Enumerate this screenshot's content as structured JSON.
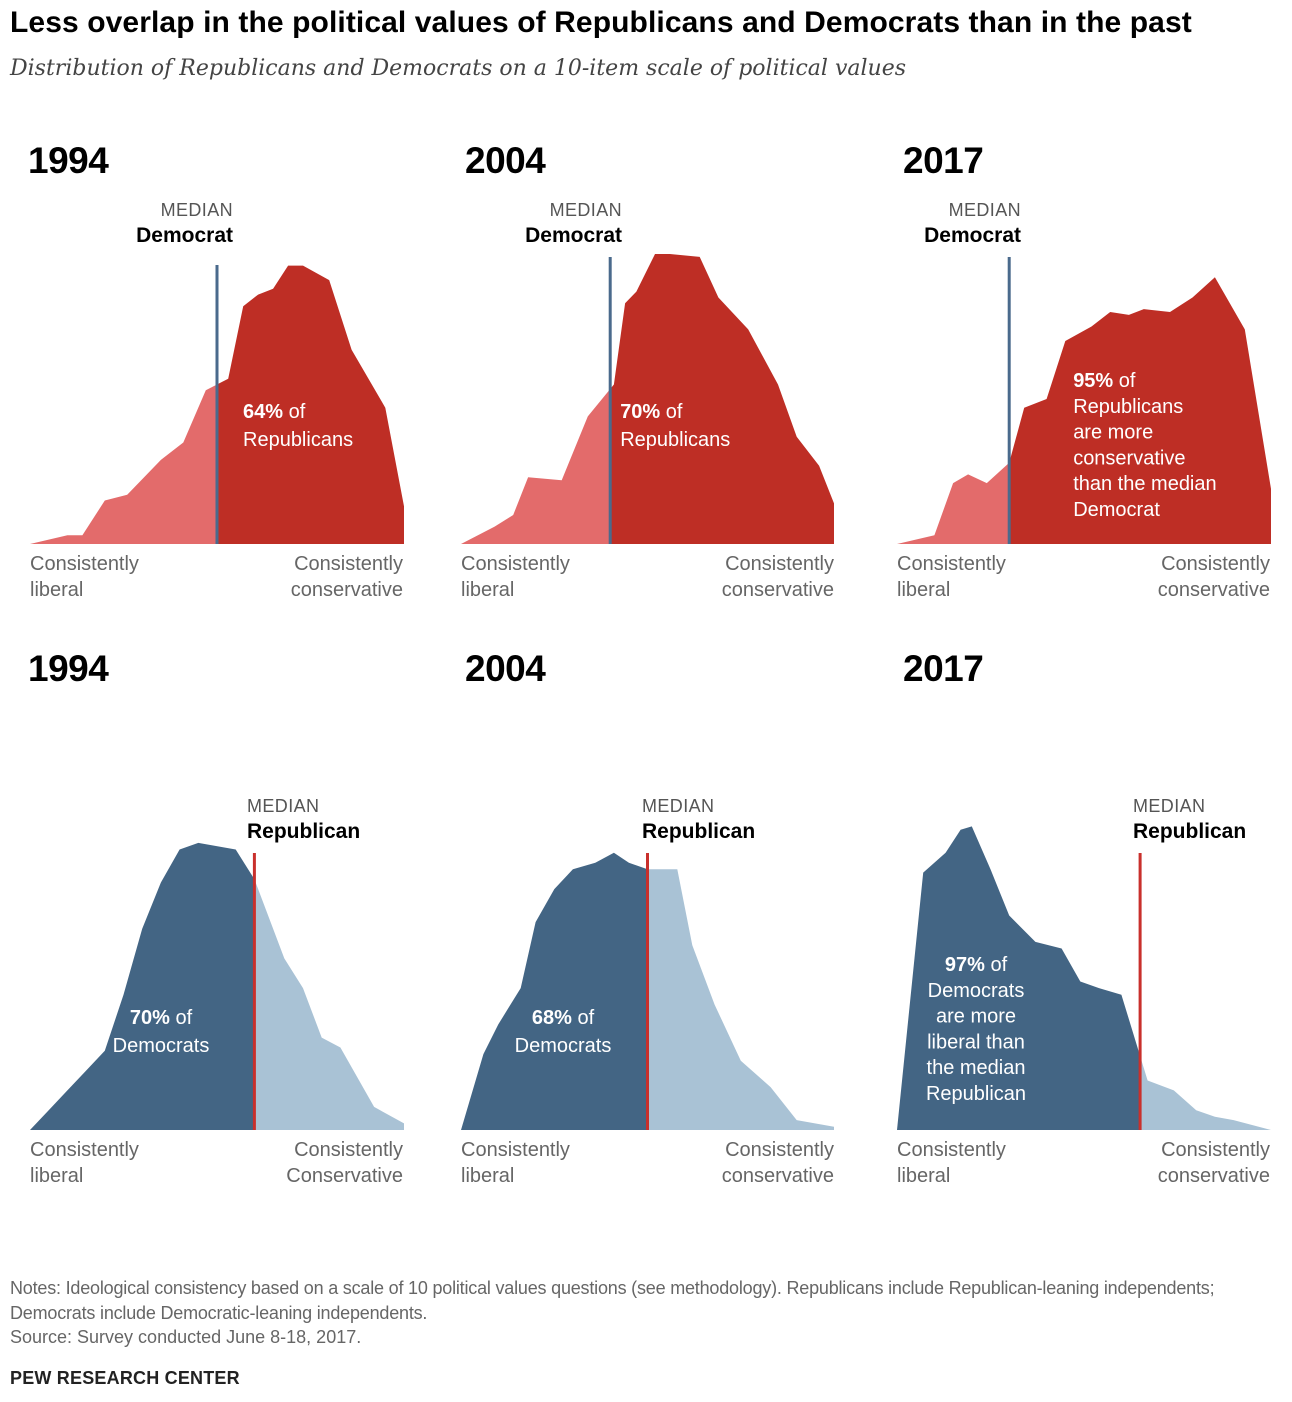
{
  "title": "Less overlap in the political values of Republicans and Democrats than in the past",
  "subtitle": "Distribution of Republicans and Democrats on a 10-item scale of political values",
  "notes": "Notes: Ideological consistency based on a scale of 10 political values questions (see methodology). Republicans include Republican-leaning independents; Democrats include Democratic-leaning independents.",
  "source": "Source: Survey conducted June 8-18, 2017.",
  "brand": "PEW RESEARCH CENTER",
  "colors": {
    "rep_dark": "#be2e25",
    "rep_light": "#e36b6b",
    "dem_dark": "#436584",
    "dem_light": "#a9c2d5",
    "dem_median_line": "#4a6a8c",
    "rep_median_line": "#c9302c"
  },
  "panels": [
    {
      "year": "1994",
      "median_caption": "MEDIAN",
      "median_label": "Democrat",
      "axis_left": "Consistently\nliberal",
      "axis_right": "Consistently\nconservative"
    },
    {
      "year": "2004",
      "median_caption": "MEDIAN",
      "median_label": "Democrat",
      "axis_left": "Consistently\nliberal",
      "axis_right": "Consistently\nconservative"
    },
    {
      "year": "2017",
      "median_caption": "MEDIAN",
      "median_label": "Democrat",
      "axis_left": "Consistently\nliberal",
      "axis_right": "Consistently\nconservative"
    },
    {
      "year": "1994",
      "median_caption": "MEDIAN",
      "median_label": "Republican",
      "axis_left": "Consistently\nliberal",
      "axis_right": "Consistently\nConservative"
    },
    {
      "year": "2004",
      "median_caption": "MEDIAN",
      "median_label": "Republican",
      "axis_left": "Consistently\nliberal",
      "axis_right": "Consistently\nconservative"
    },
    {
      "year": "2017",
      "median_caption": "MEDIAN",
      "median_label": "Republican",
      "axis_left": "Consistently\nliberal",
      "axis_right": "Consistently\nconservative"
    }
  ],
  "chart_data": [
    {
      "type": "area",
      "group": "Republicans",
      "year": "1994",
      "median_of": "Democrats",
      "x": [
        0,
        0.1,
        0.14,
        0.2,
        0.26,
        0.35,
        0.41,
        0.47,
        0.53,
        0.57,
        0.61,
        0.65,
        0.69,
        0.73,
        0.8,
        0.86,
        0.95,
        1
      ],
      "y": [
        0,
        0.03,
        0.03,
        0.15,
        0.17,
        0.29,
        0.35,
        0.53,
        0.57,
        0.82,
        0.86,
        0.88,
        0.96,
        0.96,
        0.91,
        0.67,
        0.47,
        0.13
      ],
      "median_x": 0.5,
      "annotation": [
        "64% of",
        "Republicans"
      ],
      "ylim": [
        0,
        1
      ]
    },
    {
      "type": "area",
      "group": "Republicans",
      "year": "2004",
      "median_of": "Democrats",
      "x": [
        0,
        0.09,
        0.14,
        0.18,
        0.27,
        0.34,
        0.41,
        0.44,
        0.47,
        0.52,
        0.56,
        0.64,
        0.69,
        0.77,
        0.85,
        0.9,
        0.96,
        1
      ],
      "y": [
        0,
        0.06,
        0.1,
        0.23,
        0.22,
        0.44,
        0.55,
        0.83,
        0.87,
        1,
        1,
        0.99,
        0.85,
        0.74,
        0.55,
        0.37,
        0.27,
        0.14
      ],
      "median_x": 0.4,
      "annotation": [
        "70% of",
        "Republicans"
      ],
      "ylim": [
        0,
        1
      ]
    },
    {
      "type": "area",
      "group": "Republicans",
      "year": "2017",
      "median_of": "Democrats",
      "x": [
        0,
        0.1,
        0.15,
        0.19,
        0.24,
        0.3,
        0.34,
        0.4,
        0.45,
        0.52,
        0.57,
        0.62,
        0.66,
        0.73,
        0.79,
        0.85,
        0.93,
        1
      ],
      "y": [
        0,
        0.03,
        0.21,
        0.24,
        0.21,
        0.28,
        0.47,
        0.5,
        0.7,
        0.75,
        0.8,
        0.79,
        0.81,
        0.8,
        0.85,
        0.92,
        0.74,
        0.19
      ],
      "median_x": 0.3,
      "annotation": [
        "95% of",
        "Republicans",
        "are more",
        "conservative",
        "than the median",
        "Democrat"
      ],
      "ylim": [
        0,
        1
      ]
    },
    {
      "type": "area",
      "group": "Democrats",
      "year": "1994",
      "median_of": "Republicans",
      "x": [
        0,
        0.05,
        0.1,
        0.15,
        0.2,
        0.25,
        0.3,
        0.35,
        0.4,
        0.45,
        0.55,
        0.6,
        0.68,
        0.73,
        0.78,
        0.83,
        0.92,
        1
      ],
      "y": [
        0,
        0.06,
        0.12,
        0.18,
        0.24,
        0.41,
        0.61,
        0.75,
        0.85,
        0.87,
        0.85,
        0.76,
        0.52,
        0.43,
        0.28,
        0.25,
        0.07,
        0.02
      ],
      "median_x": 0.6,
      "annotation": [
        "70% of",
        "Democrats"
      ],
      "ylim": [
        0,
        1
      ]
    },
    {
      "type": "area",
      "group": "Democrats",
      "year": "2004",
      "median_of": "Republicans",
      "x": [
        0,
        0.06,
        0.1,
        0.16,
        0.2,
        0.25,
        0.3,
        0.36,
        0.41,
        0.45,
        0.5,
        0.55,
        0.58,
        0.62,
        0.68,
        0.75,
        0.83,
        0.9,
        1
      ],
      "y": [
        0,
        0.23,
        0.32,
        0.43,
        0.63,
        0.73,
        0.79,
        0.81,
        0.84,
        0.81,
        0.79,
        0.79,
        0.79,
        0.56,
        0.38,
        0.21,
        0.13,
        0.03,
        0.01
      ],
      "median_x": 0.5,
      "annotation": [
        "68% of",
        "Democrats"
      ],
      "ylim": [
        0,
        1
      ]
    },
    {
      "type": "area",
      "group": "Democrats",
      "year": "2017",
      "median_of": "Republicans",
      "x": [
        0,
        0.07,
        0.13,
        0.17,
        0.2,
        0.25,
        0.3,
        0.37,
        0.44,
        0.49,
        0.54,
        0.6,
        0.67,
        0.74,
        0.8,
        0.85,
        0.9,
        1
      ],
      "y": [
        0,
        0.78,
        0.84,
        0.91,
        0.92,
        0.79,
        0.65,
        0.57,
        0.55,
        0.45,
        0.43,
        0.41,
        0.15,
        0.12,
        0.06,
        0.04,
        0.03,
        0
      ],
      "median_x": 0.65,
      "annotation": [
        "97% of",
        "Democrats",
        "are more",
        "liberal than",
        "the median",
        "Republican"
      ],
      "ylim": [
        0,
        1
      ]
    }
  ]
}
